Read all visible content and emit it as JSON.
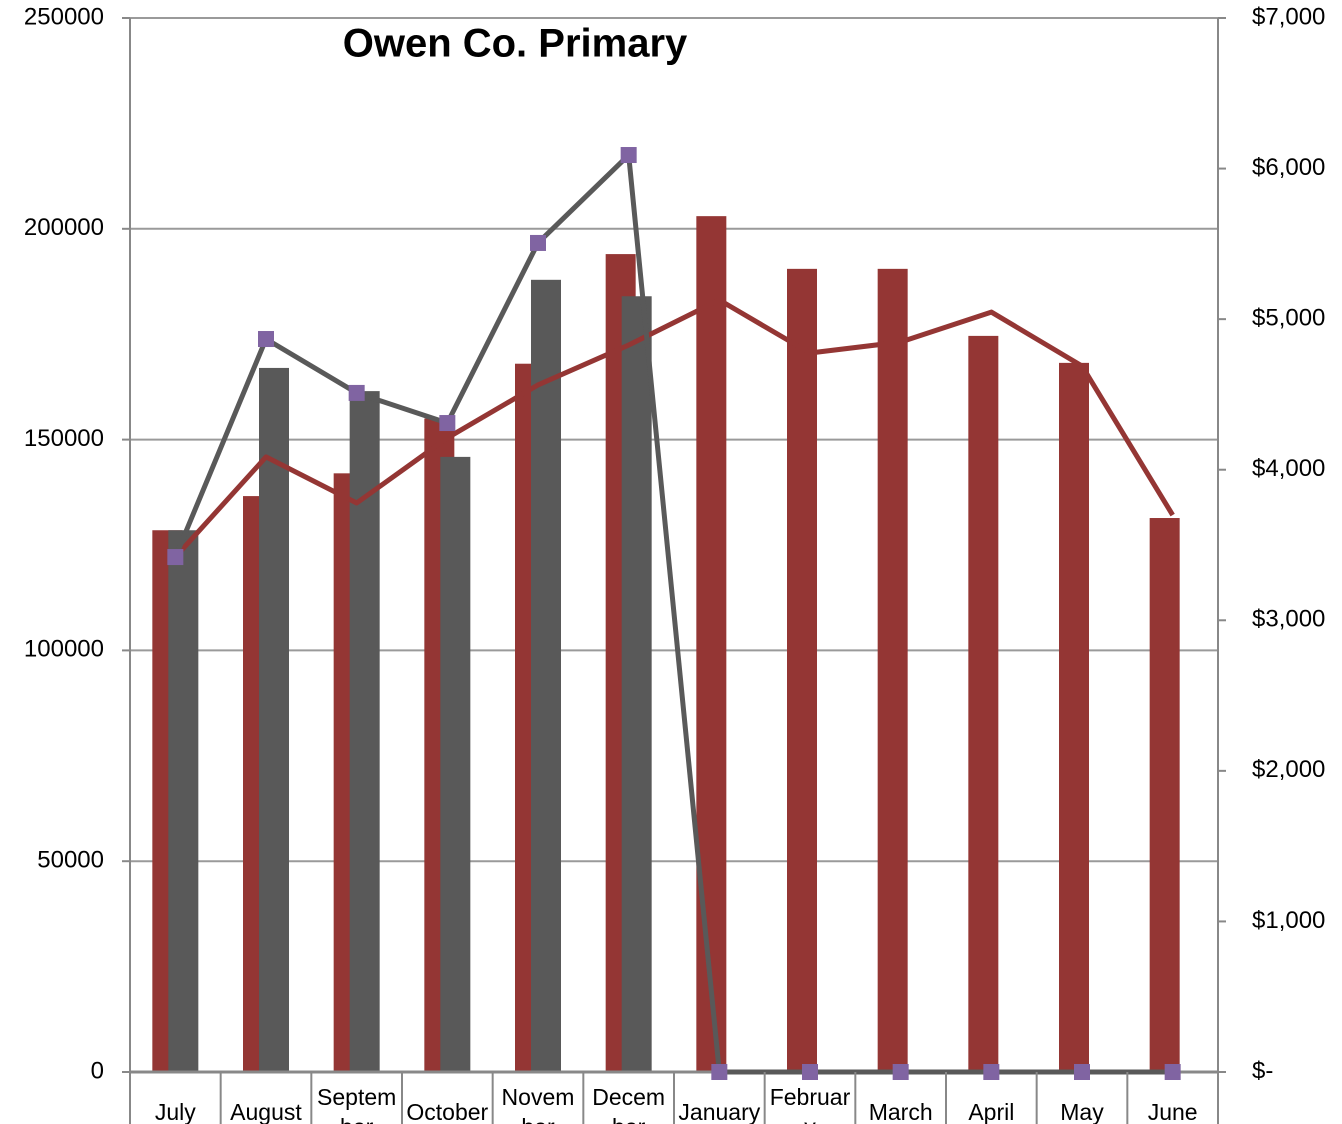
{
  "chart_data": {
    "type": "bar-line",
    "title": "Owen Co. Primary",
    "categories": [
      "July",
      "August",
      "September",
      "October",
      "November",
      "December",
      "January",
      "February",
      "March",
      "April",
      "May",
      "June"
    ],
    "series": [
      {
        "type": "bar",
        "color": "#943634",
        "values": [
          128500,
          136600,
          142000,
          155000,
          168000,
          194000,
          203000,
          190500,
          190500,
          174600,
          168200,
          131400
        ]
      },
      {
        "type": "bar",
        "color": "#595959",
        "values": [
          128500,
          167000,
          161500,
          145900,
          187900,
          184000,
          null,
          null,
          null,
          null,
          null,
          null
        ]
      },
      {
        "type": "line",
        "axis": "y2",
        "color": "#943634",
        "values": [
          3420,
          4085,
          3779,
          4211,
          4563,
          4828,
          5127,
          4775,
          4848,
          5047,
          4689,
          3699
        ]
      },
      {
        "type": "line",
        "axis": "y2",
        "color": "#595959",
        "marker_color": "#8064a2",
        "values": [
          3420,
          4868,
          4510,
          4310,
          5506,
          6090,
          0,
          0,
          0,
          0,
          0,
          0
        ]
      }
    ],
    "ylim": [
      0,
      250000
    ],
    "yticks": [
      0,
      50000,
      100000,
      150000,
      200000,
      250000
    ],
    "y2lim": [
      0,
      7000
    ],
    "y2ticks": [
      {
        "value": 0,
        "label": "$-"
      },
      {
        "value": 1000,
        "label": "$1,000"
      },
      {
        "value": 2000,
        "label": "$2,000"
      },
      {
        "value": 3000,
        "label": "$3,000"
      },
      {
        "value": 4000,
        "label": "$4,000"
      },
      {
        "value": 5000,
        "label": "$5,000"
      },
      {
        "value": 6000,
        "label": "$6,000"
      },
      {
        "value": 7000,
        "label": "$7,000"
      }
    ],
    "grid": true
  }
}
